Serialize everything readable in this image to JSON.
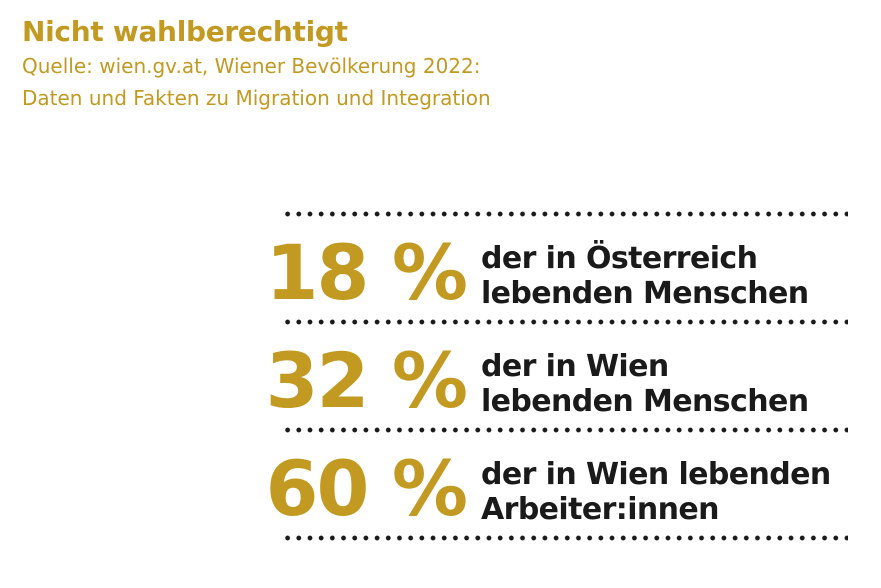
{
  "header": {
    "title": "Nicht wahlberechtigt",
    "source_line1": "Quelle: wien.gv.at, Wiener Bevölkerung 2022:",
    "source_line2": "Daten und Fakten zu Migration und Integration"
  },
  "colors": {
    "accent": "#c29a22",
    "text": "#1a1a1a",
    "background": "#ffffff"
  },
  "chart_data": {
    "type": "table",
    "title": "Nicht wahlberechtigt",
    "rows": [
      {
        "value": 18,
        "label": "18 %",
        "line1": "der in Österreich",
        "line2": "lebenden Menschen"
      },
      {
        "value": 32,
        "label": "32 %",
        "line1": "der in Wien",
        "line2": "lebenden Menschen"
      },
      {
        "value": 60,
        "label": "60 %",
        "line1": "der in Wien lebenden",
        "line2": "Arbeiter:innen"
      }
    ]
  }
}
